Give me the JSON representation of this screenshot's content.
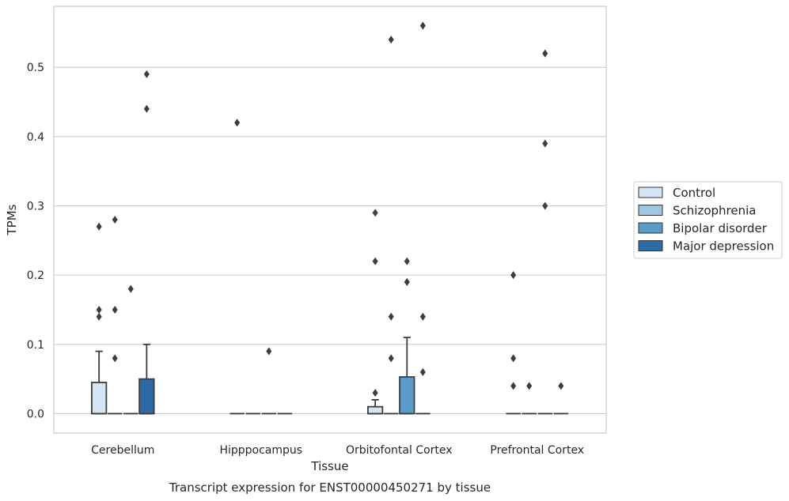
{
  "chart_data": {
    "type": "boxplot",
    "title": "",
    "caption": "Transcript expression for ENST00000450271 by tissue",
    "xlabel": "Tissue",
    "ylabel": "TPMs",
    "ylim": [
      -0.028,
      0.588
    ],
    "yticks": [
      0.0,
      0.1,
      0.2,
      0.3,
      0.4,
      0.5
    ],
    "ytick_labels": [
      "0.0",
      "0.1",
      "0.2",
      "0.3",
      "0.4",
      "0.5"
    ],
    "grid": "horizontal",
    "legend_position": "right",
    "categories": [
      "Cerebellum",
      "Hipppocampus",
      "Orbitofontal Cortex",
      "Prefrontal Cortex"
    ],
    "series": [
      {
        "name": "Control",
        "color": "#d4e4f3",
        "boxes": [
          {
            "q1": 0.0,
            "median": 0.0,
            "q3": 0.045,
            "whisker_low": 0.0,
            "whisker_high": 0.09,
            "outliers": [
              0.14,
              0.15,
              0.27
            ]
          },
          {
            "q1": 0.0,
            "median": 0.0,
            "q3": 0.0,
            "whisker_low": 0.0,
            "whisker_high": 0.0,
            "outliers": [
              0.42
            ]
          },
          {
            "q1": 0.0,
            "median": 0.0,
            "q3": 0.01,
            "whisker_low": 0.0,
            "whisker_high": 0.02,
            "outliers": [
              0.03,
              0.22,
              0.29
            ]
          },
          {
            "q1": 0.0,
            "median": 0.0,
            "q3": 0.0,
            "whisker_low": 0.0,
            "whisker_high": 0.0,
            "outliers": [
              0.04,
              0.08,
              0.2
            ]
          }
        ]
      },
      {
        "name": "Schizophrenia",
        "color": "#9fc5df",
        "boxes": [
          {
            "q1": 0.0,
            "median": 0.0,
            "q3": 0.0,
            "whisker_low": 0.0,
            "whisker_high": 0.0,
            "outliers": [
              0.08,
              0.15,
              0.28
            ]
          },
          {
            "q1": 0.0,
            "median": 0.0,
            "q3": 0.0,
            "whisker_low": 0.0,
            "whisker_high": 0.0,
            "outliers": []
          },
          {
            "q1": 0.0,
            "median": 0.0,
            "q3": 0.0,
            "whisker_low": 0.0,
            "whisker_high": 0.0,
            "outliers": [
              0.08,
              0.14,
              0.54
            ]
          },
          {
            "q1": 0.0,
            "median": 0.0,
            "q3": 0.0,
            "whisker_low": 0.0,
            "whisker_high": 0.0,
            "outliers": [
              0.04
            ]
          }
        ]
      },
      {
        "name": "Bipolar disorder",
        "color": "#5b9bc8",
        "boxes": [
          {
            "q1": 0.0,
            "median": 0.0,
            "q3": 0.0,
            "whisker_low": 0.0,
            "whisker_high": 0.0,
            "outliers": [
              0.18
            ]
          },
          {
            "q1": 0.0,
            "median": 0.0,
            "q3": 0.0,
            "whisker_low": 0.0,
            "whisker_high": 0.0,
            "outliers": [
              0.09
            ]
          },
          {
            "q1": 0.0,
            "median": 0.0,
            "q3": 0.053,
            "whisker_low": 0.0,
            "whisker_high": 0.11,
            "outliers": [
              0.19,
              0.22
            ]
          },
          {
            "q1": 0.0,
            "median": 0.0,
            "q3": 0.0,
            "whisker_low": 0.0,
            "whisker_high": 0.0,
            "outliers": [
              0.3,
              0.39,
              0.52
            ]
          }
        ]
      },
      {
        "name": "Major depression",
        "color": "#2d6aa6",
        "boxes": [
          {
            "q1": 0.0,
            "median": 0.0,
            "q3": 0.05,
            "whisker_low": 0.0,
            "whisker_high": 0.1,
            "outliers": [
              0.44,
              0.49
            ]
          },
          {
            "q1": 0.0,
            "median": 0.0,
            "q3": 0.0,
            "whisker_low": 0.0,
            "whisker_high": 0.0,
            "outliers": []
          },
          {
            "q1": 0.0,
            "median": 0.0,
            "q3": 0.0,
            "whisker_low": 0.0,
            "whisker_high": 0.0,
            "outliers": [
              0.06,
              0.14,
              0.56
            ]
          },
          {
            "q1": 0.0,
            "median": 0.0,
            "q3": 0.0,
            "whisker_low": 0.0,
            "whisker_high": 0.0,
            "outliers": [
              0.04
            ]
          }
        ]
      }
    ]
  }
}
